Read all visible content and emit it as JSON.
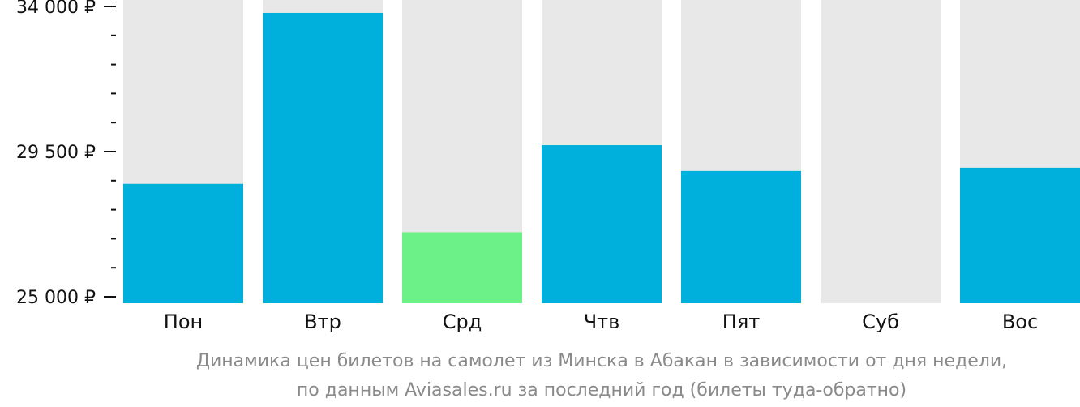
{
  "chart_data": {
    "type": "bar",
    "categories": [
      "Пон",
      "Втр",
      "Срд",
      "Чтв",
      "Пят",
      "Суб",
      "Вос"
    ],
    "values": [
      28500,
      33800,
      27000,
      29700,
      28900,
      null,
      29000
    ],
    "highlight_index": 2,
    "ylim": [
      25000,
      34000
    ],
    "y_major_ticks": [
      {
        "value": 34000,
        "label": "34 000 ₽"
      },
      {
        "value": 29500,
        "label": "29 500 ₽"
      },
      {
        "value": 25000,
        "label": "25 000 ₽"
      }
    ],
    "y_minor_ticks": [
      33100,
      32200,
      31300,
      30400,
      28600,
      27700,
      26800,
      25900
    ],
    "colors": {
      "bar": "#00b0dc",
      "highlight": "#6bf187",
      "background": "#e8e8e8"
    },
    "caption_lines": [
      "Динамика цен билетов на самолет из Минска в Абакан в зависимости от дня недели,",
      "по данным Aviasales.ru за последний год (билеты туда-обратно)"
    ],
    "grid": false,
    "legend": "none"
  }
}
